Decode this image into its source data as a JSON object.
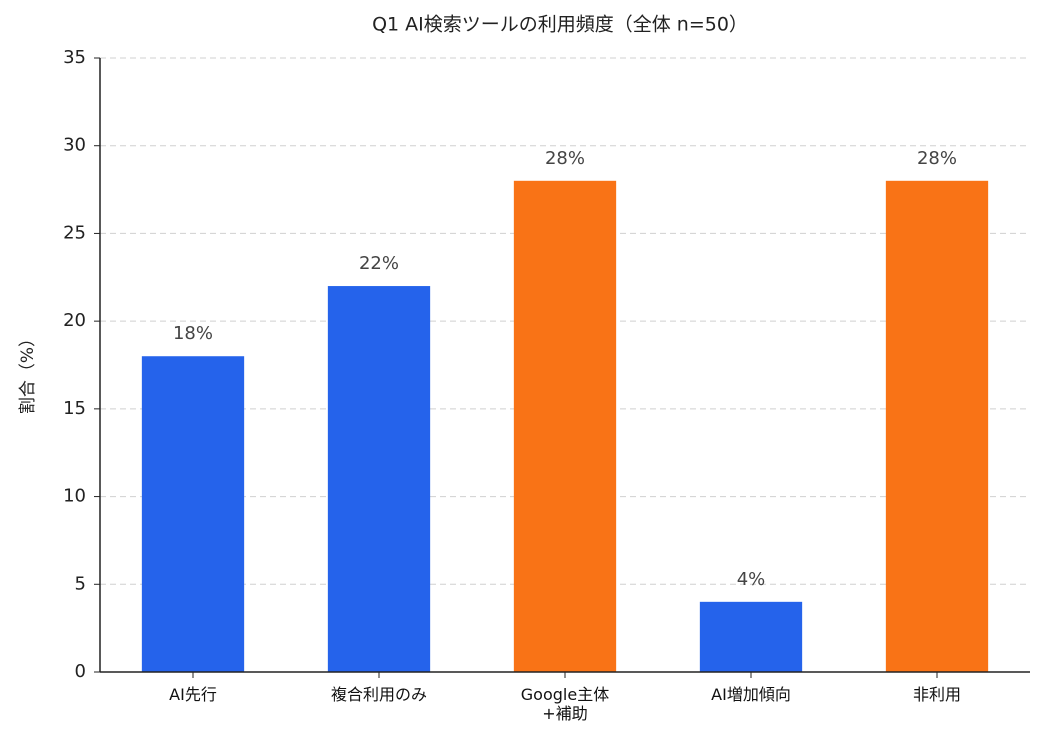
{
  "chart_data": {
    "type": "bar",
    "title": "Q1 AI検索ツールの利用頻度（全体 n=50）",
    "y_label": "割合（%）",
    "categories": [
      "AI先行",
      "複合利用のみ",
      "Google主体\n+補助",
      "AI増加傾向",
      "非利用"
    ],
    "values": [
      18,
      22,
      28,
      4,
      28
    ],
    "value_labels": [
      "18%",
      "22%",
      "28%",
      "4%",
      "28%"
    ],
    "colors": [
      "#2563eb",
      "#2563eb",
      "#f97316",
      "#2563eb",
      "#f97316"
    ],
    "ylim": [
      0,
      35
    ],
    "yticks": [
      0,
      5,
      10,
      15,
      20,
      25,
      30,
      35
    ],
    "grid": true
  }
}
